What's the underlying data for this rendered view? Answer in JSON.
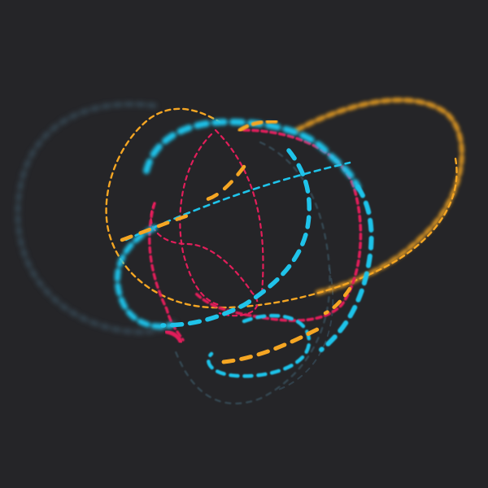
{
  "scene": {
    "background": "#252528",
    "palette": {
      "cyan": "#1fc3ea",
      "orange": "#f5a623",
      "magenta": "#e21e5a",
      "slate": "#3d5a6a"
    }
  }
}
